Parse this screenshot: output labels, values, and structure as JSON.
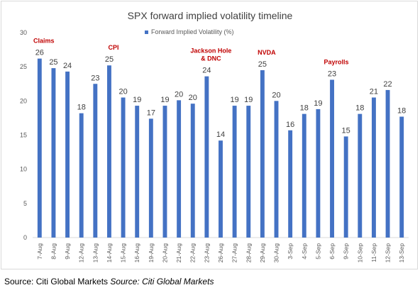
{
  "chart_data": {
    "type": "bar",
    "title": "SPX forward implied volatility timeline",
    "legend": "top-center",
    "series": [
      {
        "name": "Forward Implied Volatility (%)",
        "color": "#4472c4",
        "values": [
          26.2,
          24.8,
          24.3,
          18.2,
          22.5,
          25.2,
          20.5,
          19.3,
          17.4,
          19.3,
          20.1,
          19.6,
          23.6,
          14.2,
          19.3,
          19.3,
          24.5,
          20.0,
          15.7,
          18.1,
          18.8,
          23.1,
          14.8,
          18.1,
          20.5,
          21.6,
          17.7
        ]
      }
    ],
    "data_labels": [
      "26",
      "25",
      "24",
      "18",
      "23",
      "25",
      "20",
      "19",
      "17",
      "19",
      "20",
      "20",
      "24",
      "14",
      "19",
      "19",
      "25",
      "20",
      "16",
      "18",
      "19",
      "23",
      "15",
      "18",
      "21",
      "22",
      "18"
    ],
    "categories": [
      "7-Aug",
      "8-Aug",
      "9-Aug",
      "12-Aug",
      "13-Aug",
      "14-Aug",
      "15-Aug",
      "16-Aug",
      "19-Aug",
      "20-Aug",
      "21-Aug",
      "22-Aug",
      "23-Aug",
      "26-Aug",
      "27-Aug",
      "28-Aug",
      "29-Aug",
      "30-Aug",
      "3-Sep",
      "4-Sep",
      "5-Sep",
      "6-Sep",
      "9-Sep",
      "10-Sep",
      "11-Sep",
      "12-Sep",
      "13-Sep"
    ],
    "ylim": [
      0,
      30
    ],
    "yticks": [
      0,
      5,
      10,
      15,
      20,
      25,
      30
    ],
    "grid": false,
    "annotations": [
      {
        "category_index": 0,
        "lines": [
          "Claims"
        ]
      },
      {
        "category_index": 5,
        "lines": [
          "CPI"
        ]
      },
      {
        "category_index": 12,
        "lines": [
          "Jackson Hole",
          "& DNC"
        ]
      },
      {
        "category_index": 16,
        "lines": [
          "NVDA"
        ]
      },
      {
        "category_index": 21,
        "lines": [
          "Payrolls"
        ]
      }
    ],
    "annotation_color": "#c00000",
    "xlabel": "",
    "ylabel": ""
  },
  "source": {
    "plain": "Source: Citi Global Markets ",
    "italic": "Source: Citi Global Markets"
  }
}
